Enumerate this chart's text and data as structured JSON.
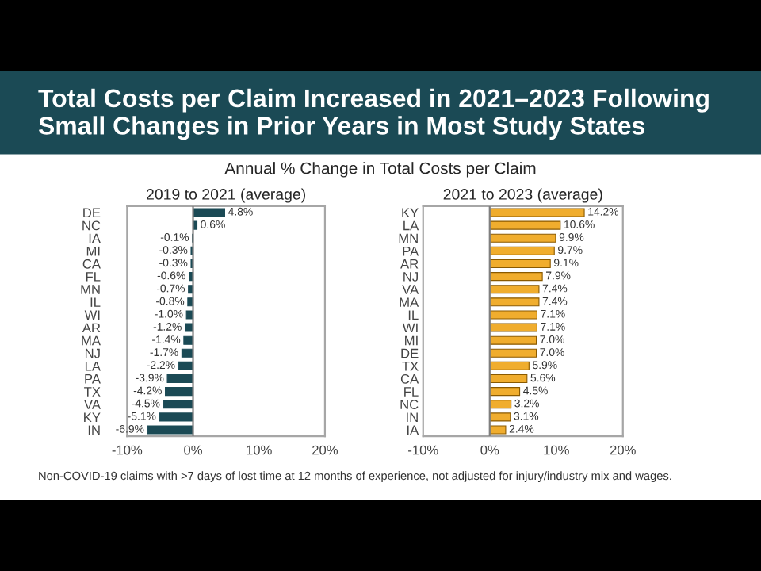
{
  "chart_data": [
    {
      "type": "bar",
      "orientation": "horizontal",
      "title": "2019 to 2021 (average)",
      "annotations": [
        "Total Costs per Claim Increased in 2021–2023 Following Small Changes in Prior Years in Most Study States",
        "Annual % Change in Total Costs per Claim",
        "Non-COVID-19 claims with >7 days of lost time at 12 months of experience, not adjusted for injury/industry mix and wages."
      ],
      "categories": [
        "DE",
        "NC",
        "IA",
        "MI",
        "CA",
        "FL",
        "MN",
        "IL",
        "WI",
        "AR",
        "MA",
        "NJ",
        "LA",
        "PA",
        "TX",
        "VA",
        "KY",
        "IN"
      ],
      "values": [
        4.8,
        0.6,
        -0.1,
        -0.3,
        -0.3,
        -0.6,
        -0.7,
        -0.8,
        -1.0,
        -1.2,
        -1.4,
        -1.7,
        -2.2,
        -3.9,
        -4.2,
        -4.5,
        -5.1,
        -6.9
      ],
      "value_labels": [
        "4.8%",
        "0.6%",
        "-0.1%",
        "-0.3%",
        "-0.3%",
        "-0.6%",
        "-0.7%",
        "-0.8%",
        "-1.0%",
        "-1.2%",
        "-1.4%",
        "-1.7%",
        "-2.2%",
        "-3.9%",
        "-4.2%",
        "-4.5%",
        "-5.1%",
        "-6.9%"
      ],
      "color": "#1b4a55",
      "xlim": [
        -10,
        20
      ],
      "xticks": [
        {
          "value": -10,
          "label": "-10%"
        },
        {
          "value": 0,
          "label": "0%"
        },
        {
          "value": 10,
          "label": "10%"
        },
        {
          "value": 20,
          "label": "20%"
        }
      ],
      "ref_lines": [
        {
          "axis": "x",
          "value": 0,
          "color": "#7f7f7f"
        }
      ],
      "grid": false,
      "legend": false
    },
    {
      "type": "bar",
      "orientation": "horizontal",
      "title": "2021 to 2023 (average)",
      "categories": [
        "KY",
        "LA",
        "MN",
        "PA",
        "AR",
        "NJ",
        "VA",
        "MA",
        "IL",
        "WI",
        "MI",
        "DE",
        "TX",
        "CA",
        "FL",
        "NC",
        "IN",
        "IA"
      ],
      "values": [
        14.2,
        10.6,
        9.9,
        9.7,
        9.1,
        7.9,
        7.4,
        7.4,
        7.1,
        7.1,
        7.0,
        7.0,
        5.9,
        5.6,
        4.5,
        3.2,
        3.1,
        2.4
      ],
      "value_labels": [
        "14.2%",
        "10.6%",
        "9.9%",
        "9.7%",
        "9.1%",
        "7.9%",
        "7.4%",
        "7.4%",
        "7.1%",
        "7.1%",
        "7.0%",
        "7.0%",
        "5.9%",
        "5.6%",
        "4.5%",
        "3.2%",
        "3.1%",
        "2.4%"
      ],
      "color": "#f0ad2e",
      "xlim": [
        -10,
        20
      ],
      "xticks": [
        {
          "value": -10,
          "label": "-10%"
        },
        {
          "value": 0,
          "label": "0%"
        },
        {
          "value": 10,
          "label": "10%"
        },
        {
          "value": 20,
          "label": "20%"
        }
      ],
      "ref_lines": [
        {
          "axis": "x",
          "value": 0,
          "color": "#7f7f7f"
        }
      ],
      "grid": false,
      "legend": false
    }
  ]
}
